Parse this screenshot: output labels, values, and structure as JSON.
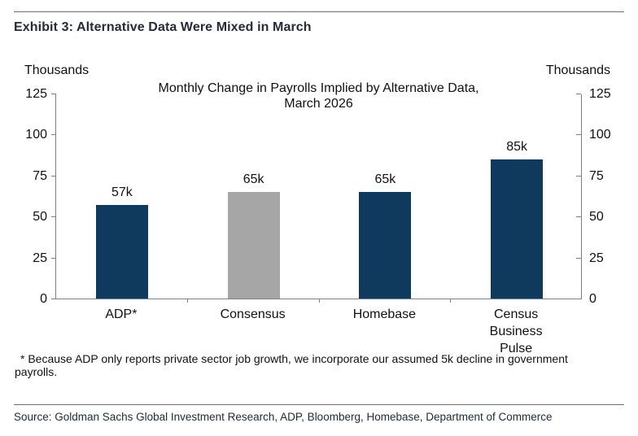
{
  "page": {
    "exhibit_title": "Exhibit 3: Alternative Data Were Mixed in March",
    "footnote": "* Because ADP only reports private sector job growth, we incorporate our assumed 5k decline in government payrolls.",
    "source": "Source: Goldman Sachs Global Investment Research, ADP, Bloomberg, Homebase, Department of Commerce"
  },
  "chart_data": {
    "type": "bar",
    "title": "Monthly Change in Payrolls Implied by Alternative Data, March 2026",
    "title_lines": [
      "Monthly Change in Payrolls Implied by Alternative Data,",
      "March 2026"
    ],
    "unit_label_left": "Thousands",
    "unit_label_right": "Thousands",
    "categories": [
      "ADP*",
      "Consensus",
      "Homebase",
      "Census Business Pulse"
    ],
    "category_label_lines": [
      [
        "ADP*"
      ],
      [
        "Consensus"
      ],
      [
        "Homebase"
      ],
      [
        "Census",
        "Business",
        "Pulse"
      ]
    ],
    "values": [
      57,
      65,
      65,
      85
    ],
    "value_labels": [
      "57k",
      "65k",
      "65k",
      "85k"
    ],
    "bar_colors": [
      "#0f3a5e",
      "#a6a6a6",
      "#0f3a5e",
      "#0f3a5e"
    ],
    "ylim": [
      0,
      125
    ],
    "yticks": [
      0,
      25,
      50,
      75,
      100,
      125
    ],
    "grid": false,
    "legend_position": "none",
    "colors": {
      "navy": "#0f3a5e",
      "gray": "#a6a6a6",
      "axis": "#7f7f7f"
    }
  }
}
